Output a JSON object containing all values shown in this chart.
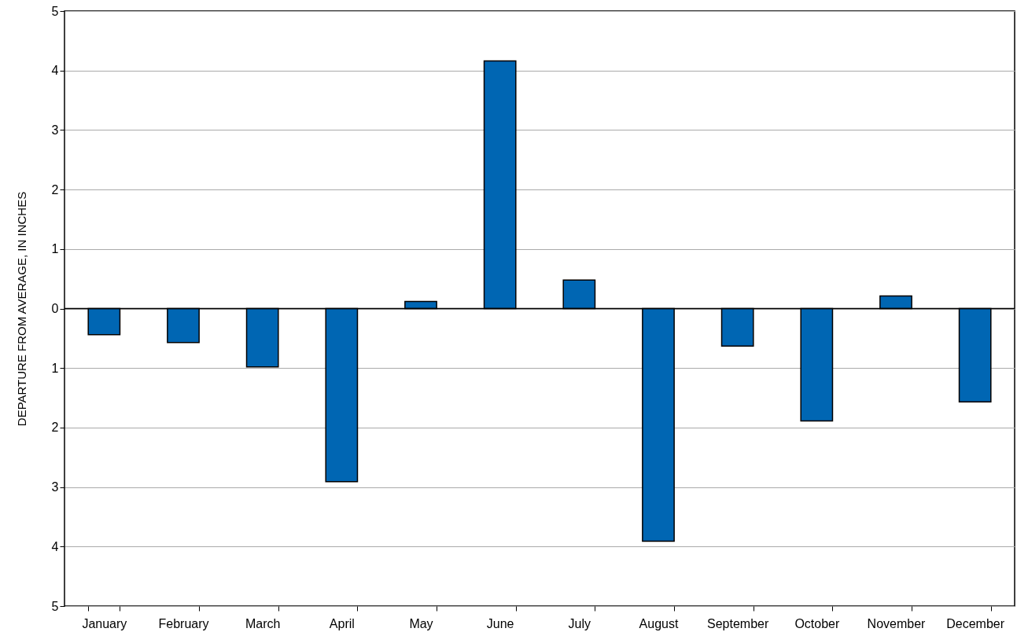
{
  "chart_data": {
    "type": "bar",
    "ylabel": "DEPARTURE FROM AVERAGE, IN INCHES",
    "categories": [
      "January",
      "February",
      "March",
      "April",
      "May",
      "June",
      "July",
      "August",
      "September",
      "October",
      "November",
      "December"
    ],
    "series": [
      {
        "color": "#0066b3",
        "values": [
          -0.44,
          -0.57,
          -0.98,
          -2.91,
          0.12,
          4.16,
          0.48,
          -3.91,
          -0.63,
          -1.89,
          0.21,
          -1.57
        ]
      }
    ],
    "ylim": [
      -5,
      5
    ],
    "yticks": [
      {
        "value": -5,
        "label": "5"
      },
      {
        "value": -4,
        "label": "4"
      },
      {
        "value": -3,
        "label": "3"
      },
      {
        "value": -2,
        "label": "2"
      },
      {
        "value": -1,
        "label": "1"
      },
      0,
      1,
      2,
      3,
      4,
      5
    ],
    "ref_lines": [
      {
        "axis": "y",
        "value": 0,
        "color": "#000000"
      }
    ],
    "grid": "y"
  }
}
